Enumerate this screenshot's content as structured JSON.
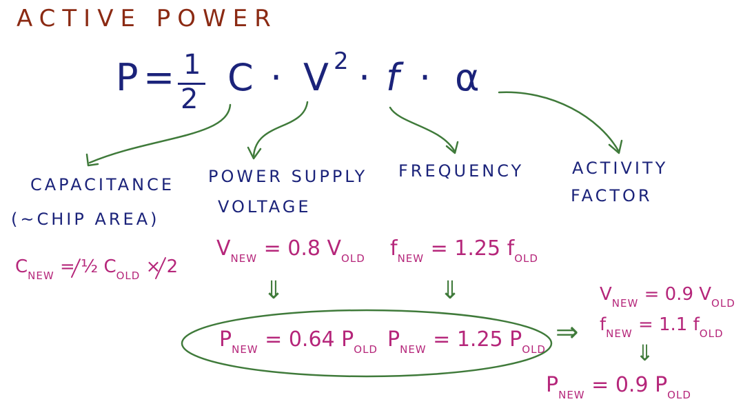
{
  "title": "ACTIVE POWER",
  "equation": {
    "p": "P",
    "equals": "=",
    "half_num": "1",
    "half_den": "2",
    "c": "C",
    "dot": "·",
    "v": "V",
    "v_exp": "2",
    "f": "f",
    "alpha": "α"
  },
  "labels": {
    "capacitance_1": "CAPACITANCE",
    "capacitance_2": "(~CHIP AREA)",
    "supply_1": "POWER SUPPLY",
    "supply_2": "VOLTAGE",
    "frequency": "FREQUENCY",
    "activity_1": "ACTIVITY",
    "activity_2": "FACTOR"
  },
  "notes": {
    "c_new": {
      "main": "C",
      "sub": "NEW",
      "rest": " = ½ C",
      "sub2": "OLD",
      "tail": " × 2"
    },
    "v_new": {
      "main": "V",
      "sub": "NEW",
      "rest": " = 0.8 V",
      "sub2": "OLD"
    },
    "f_new": {
      "main": "f",
      "sub": "NEW",
      "rest": " = 1.25 f",
      "sub2": "OLD"
    },
    "arrow_down": "⇓",
    "p_new_v": {
      "main": "P",
      "sub": "NEW",
      "rest": " = 0.64 P",
      "sub2": "OLD"
    },
    "p_new_f": {
      "main": "P",
      "sub": "NEW",
      "rest": " = 1.25 P",
      "sub2": "OLD"
    },
    "implies": "⇒",
    "v_new2": {
      "main": "V",
      "sub": "NEW",
      "rest": " = 0.9 V",
      "sub2": "OLD"
    },
    "f_new2": {
      "main": "f",
      "sub": "NEW",
      "rest": " = 1.1 f",
      "sub2": "OLD"
    },
    "p_final": {
      "main": "P",
      "sub": "NEW",
      "rest": " = 0.9 P",
      "sub2": "OLD"
    }
  },
  "colors": {
    "title": "#8b2a13",
    "ink_blue": "#1b237a",
    "ink_magenta": "#b5267a",
    "ink_green": "#3f7a3a"
  }
}
